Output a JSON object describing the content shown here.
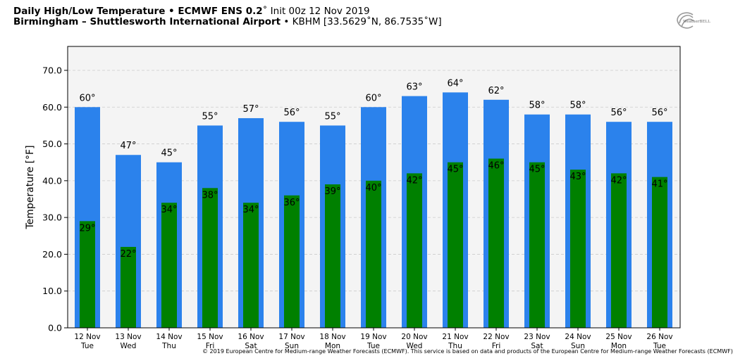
{
  "header": {
    "title_bold": "Daily High/Low Temperature • ECMWF ENS 0.2",
    "title_init": "˚ Init 00z 12 Nov 2019",
    "location_bold": "Birmingham – Shuttlesworth International Airport",
    "location_rest": " • KBHM [33.5629˚N, 86.7535˚W]"
  },
  "logo": {
    "text": "WeatherBELL"
  },
  "footer": {
    "copyright": "© 2019 European Centre for Medium-range Weather Forecasts (ECMWF). This service is based on data and products of the European Centre for Medium-range Weather Forecasts (ECMWF)"
  },
  "colors": {
    "high": "#2b82ec",
    "low": "#008000",
    "plot_bg": "#f4f4f4"
  },
  "chart_data": {
    "type": "bar",
    "ylabel": "Temperature [°F]",
    "ylim": [
      0,
      76.5
    ],
    "yticks": [
      0.0,
      10.0,
      20.0,
      30.0,
      40.0,
      50.0,
      60.0,
      70.0
    ],
    "ytick_labels": [
      "0.0",
      "10.0",
      "20.0",
      "30.0",
      "40.0",
      "50.0",
      "60.0",
      "70.0"
    ],
    "grid": true,
    "categories": [
      "12 Nov",
      "13 Nov",
      "14 Nov",
      "15 Nov",
      "16 Nov",
      "17 Nov",
      "18 Nov",
      "19 Nov",
      "20 Nov",
      "21 Nov",
      "22 Nov",
      "23 Nov",
      "24 Nov",
      "25 Nov",
      "26 Nov"
    ],
    "weekdays": [
      "Tue",
      "Wed",
      "Thu",
      "Fri",
      "Sat",
      "Sun",
      "Mon",
      "Tue",
      "Wed",
      "Thu",
      "Fri",
      "Sat",
      "Sun",
      "Mon",
      "Tue"
    ],
    "series": [
      {
        "key": "high",
        "values": [
          60,
          47,
          45,
          55,
          57,
          56,
          55,
          60,
          63,
          64,
          62,
          58,
          58,
          56,
          56
        ],
        "labels": [
          "60°",
          "47°",
          "45°",
          "55°",
          "57°",
          "56°",
          "55°",
          "60°",
          "63°",
          "64°",
          "62°",
          "58°",
          "58°",
          "56°",
          "56°"
        ]
      },
      {
        "key": "low",
        "values": [
          29,
          22,
          34,
          38,
          34,
          36,
          39,
          40,
          42,
          45,
          46,
          45,
          43,
          42,
          41
        ],
        "labels": [
          "29°",
          "22°",
          "34°",
          "38°",
          "34°",
          "36°",
          "39°",
          "40°",
          "42°",
          "45°",
          "46°",
          "45°",
          "43°",
          "42°",
          "41°"
        ]
      }
    ]
  }
}
